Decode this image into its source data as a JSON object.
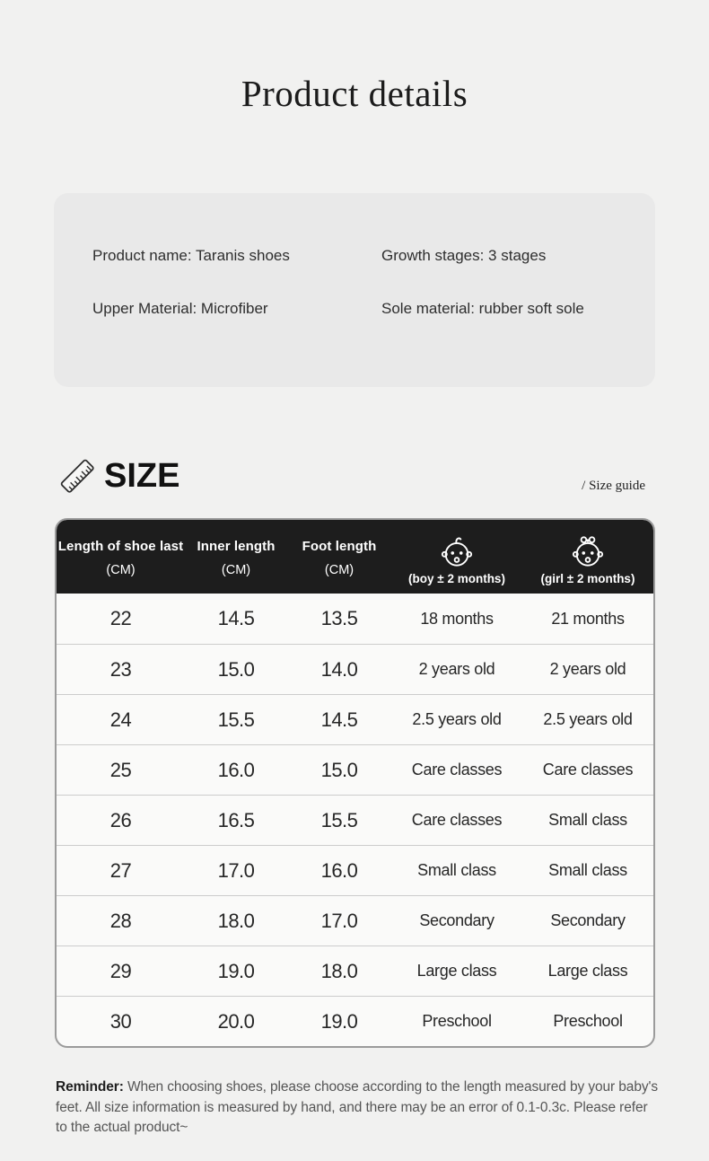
{
  "page": {
    "title": "Product details"
  },
  "info_card": {
    "items": [
      {
        "text": "Product name: Taranis shoes"
      },
      {
        "text": "Growth stages: 3 stages"
      },
      {
        "text": "Upper Material: Microfiber"
      },
      {
        "text": "Sole material: rubber soft sole"
      }
    ]
  },
  "size_section": {
    "heading": "SIZE",
    "guide_link": "/ Size guide"
  },
  "size_table": {
    "columns": [
      {
        "title": "Length of shoe last",
        "sub": "(CM)"
      },
      {
        "title": "Inner length",
        "sub": "(CM)"
      },
      {
        "title": "Foot length",
        "sub": "(CM)"
      },
      {
        "icon": "baby-boy-icon",
        "sub": "(boy ± 2 months)"
      },
      {
        "icon": "baby-girl-icon",
        "sub": "(girl ± 2 months)"
      }
    ],
    "rows": [
      [
        "22",
        "14.5",
        "13.5",
        "18 months",
        "21 months"
      ],
      [
        "23",
        "15.0",
        "14.0",
        "2 years old",
        "2 years old"
      ],
      [
        "24",
        "15.5",
        "14.5",
        "2.5 years old",
        "2.5 years old"
      ],
      [
        "25",
        "16.0",
        "15.0",
        "Care classes",
        "Care classes"
      ],
      [
        "26",
        "16.5",
        "15.5",
        "Care classes",
        "Small class"
      ],
      [
        "27",
        "17.0",
        "16.0",
        "Small class",
        "Small class"
      ],
      [
        "28",
        "18.0",
        "17.0",
        "Secondary",
        "Secondary"
      ],
      [
        "29",
        "19.0",
        "18.0",
        "Large class",
        "Large class"
      ],
      [
        "30",
        "20.0",
        "19.0",
        "Preschool",
        "Preschool"
      ]
    ]
  },
  "reminder": {
    "label": "Reminder:",
    "text": "When choosing shoes, please choose according to the length measured by your baby's feet. All size information is measured by hand, and there may be an error of 0.1-0.3c. Please refer to the actual product~"
  },
  "colors": {
    "page_bg": "#f1f1f0",
    "card_bg": "#e9e9e9",
    "table_header_bg": "#1d1d1d",
    "table_body_bg": "#fafaf9",
    "table_border": "#9b9b9b",
    "row_divider": "#cccccc",
    "text_dark": "#1e1e1e",
    "text_gray": "#555555",
    "header_text": "#ffffff"
  }
}
